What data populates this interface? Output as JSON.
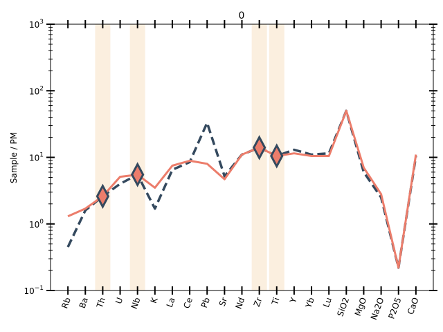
{
  "chart_data": {
    "type": "line",
    "title": "0",
    "ylabel": "Sample / PM",
    "xlabel": "",
    "yscale": "log",
    "ylim": [
      0.1,
      1000
    ],
    "yticks": [
      {
        "value": 0.1,
        "base": "10",
        "exp": "−1"
      },
      {
        "value": 1,
        "base": "10",
        "exp": "0"
      },
      {
        "value": 10,
        "base": "10",
        "exp": "1"
      },
      {
        "value": 100,
        "base": "10",
        "exp": "2"
      },
      {
        "value": 1000,
        "base": "10",
        "exp": "3"
      }
    ],
    "categories": [
      "Rb",
      "Ba",
      "Th",
      "U",
      "Nb",
      "K",
      "La",
      "Ce",
      "Pb",
      "Sr",
      "Nd",
      "Zr",
      "Ti",
      "Y",
      "Yb",
      "Lu",
      "SiO2",
      "MgO",
      "Na2O",
      "P2O5",
      "CaO"
    ],
    "highlight_bands": [
      "Th",
      "Nb",
      "Zr",
      "Ti"
    ],
    "highlight_color": "#fbefdf",
    "series": [
      {
        "style": "dashed",
        "color": "#34495e",
        "values": [
          0.45,
          1.6,
          2.6,
          4.0,
          5.5,
          1.7,
          6.5,
          8.5,
          33,
          5.2,
          11,
          14,
          10.5,
          13,
          11,
          11.5,
          50,
          6,
          2.5,
          0.22,
          10.5
        ]
      },
      {
        "style": "solid",
        "color": "#ec7d6b",
        "values": [
          1.3,
          1.7,
          2.6,
          5.1,
          5.5,
          3.5,
          7.5,
          8.9,
          8.0,
          4.7,
          11,
          14,
          10.5,
          11.5,
          10.5,
          10.5,
          50,
          7,
          2.8,
          0.22,
          11
        ]
      }
    ],
    "markers": {
      "shape": "diamond",
      "fill": "#ec7d6b",
      "edge": "#34495e",
      "points": [
        {
          "category": "Th",
          "value": 2.6
        },
        {
          "category": "Nb",
          "value": 5.5
        },
        {
          "category": "Zr",
          "value": 14
        },
        {
          "category": "Ti",
          "value": 10.5
        }
      ]
    }
  }
}
